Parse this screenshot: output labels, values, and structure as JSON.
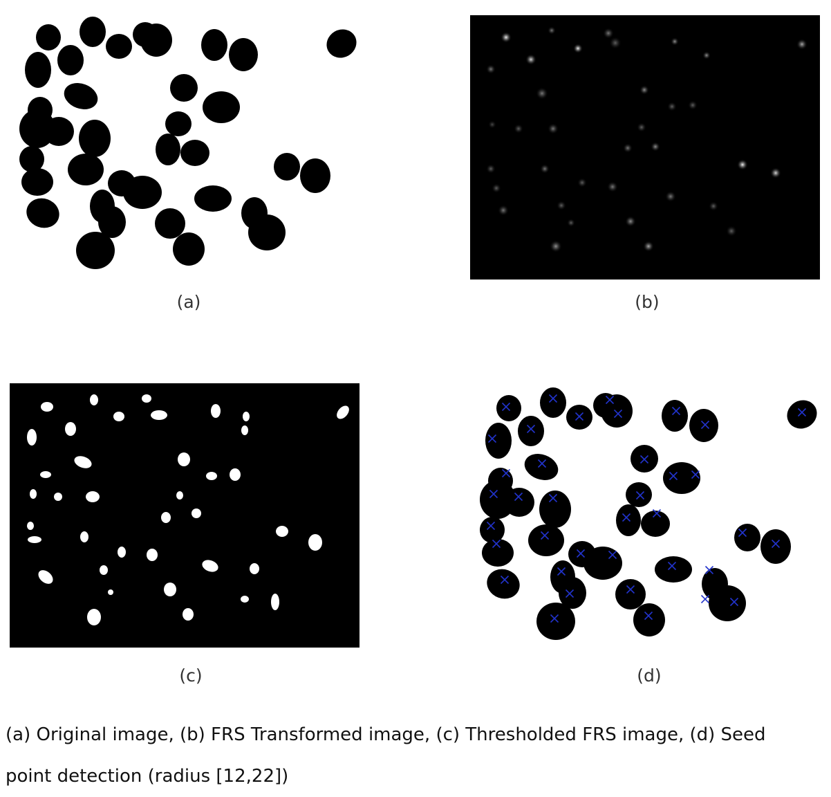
{
  "figure": {
    "panels": [
      {
        "id": "a",
        "label": "(a)"
      },
      {
        "id": "b",
        "label": "(b)"
      },
      {
        "id": "c",
        "label": "(c)"
      },
      {
        "id": "d",
        "label": "(d)"
      }
    ],
    "caption": {
      "line1": "(a) Original image, (b) FRS Transformed image, (c) Thresholded FRS image, (d) Seed",
      "line2": "point detection (radius [12,22])"
    },
    "colors": {
      "background": "#ffffff",
      "blob": "#000000",
      "panel_dark": "#000000",
      "response_spot": "#ffffff",
      "seed_marker": "#2233cc"
    }
  }
}
